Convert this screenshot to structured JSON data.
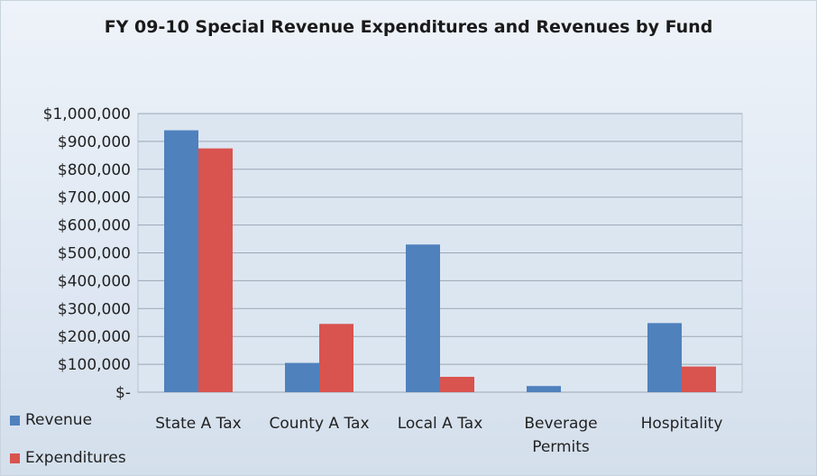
{
  "chart_data": {
    "type": "bar",
    "title": "FY 09-10 Special Revenue Expenditures and Revenues by Fund",
    "categories": [
      [
        "State A Tax"
      ],
      [
        "County A Tax"
      ],
      [
        "Local A Tax"
      ],
      [
        "Beverage",
        "Permits"
      ],
      [
        "Hospitality"
      ]
    ],
    "series": [
      {
        "name": "Revenue",
        "color": "#4f81bd",
        "values": [
          940000,
          105000,
          530000,
          22000,
          248000
        ]
      },
      {
        "name": "Expenditures",
        "color": "#d9534f",
        "values": [
          875000,
          245000,
          55000,
          0,
          92000
        ]
      }
    ],
    "ylim": [
      0,
      1000000
    ],
    "yticks": [
      {
        "value": 1000000,
        "label": "$1,000,000"
      },
      {
        "value": 900000,
        "label": "$900,000"
      },
      {
        "value": 800000,
        "label": "$800,000"
      },
      {
        "value": 700000,
        "label": "$700,000"
      },
      {
        "value": 600000,
        "label": "$600,000"
      },
      {
        "value": 500000,
        "label": "$500,000"
      },
      {
        "value": 400000,
        "label": "$400,000"
      },
      {
        "value": 300000,
        "label": "$300,000"
      },
      {
        "value": 200000,
        "label": "$200,000"
      },
      {
        "value": 100000,
        "label": "$100,000"
      },
      {
        "value": 0,
        "label": "$-"
      }
    ],
    "grid": true,
    "legend_position": "bottom-left"
  }
}
